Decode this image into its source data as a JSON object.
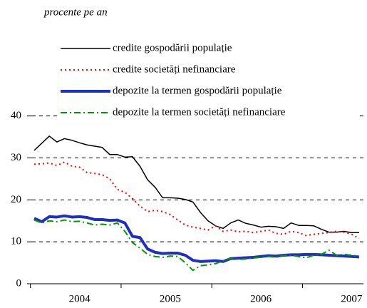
{
  "chart_data": {
    "type": "line",
    "y_label": "procente pe an",
    "categories": [
      null,
      null,
      null,
      null,
      null,
      null,
      "2004",
      null,
      null,
      null,
      null,
      null,
      null,
      null,
      null,
      null,
      null,
      null,
      "2005",
      null,
      null,
      null,
      null,
      null,
      null,
      null,
      null,
      null,
      null,
      null,
      "2006",
      null,
      null,
      null,
      null,
      null,
      null,
      null,
      null,
      null,
      null,
      null,
      "2007",
      null
    ],
    "ylim": [
      0,
      60
    ],
    "yticks": [
      0,
      10,
      20,
      30,
      40
    ],
    "grid": true,
    "series": [
      {
        "name": "credite gospodării populație",
        "color": "#000000",
        "line_style": "solid",
        "line_width": 1.5,
        "values": [
          31.8,
          33.5,
          35.2,
          33.8,
          34.6,
          34.2,
          33.6,
          33.1,
          32.8,
          32.5,
          30.8,
          30.8,
          30.2,
          30.3,
          28.0,
          24.8,
          23.0,
          20.5,
          20.5,
          20.4,
          20.1,
          19.5,
          17.0,
          15.0,
          13.8,
          13.2,
          14.5,
          15.2,
          14.4,
          14.0,
          13.5,
          13.7,
          13.6,
          13.2,
          14.5,
          13.9,
          13.9,
          13.8,
          13.0,
          12.3,
          12.3,
          12.5,
          12.2,
          12.2
        ]
      },
      {
        "name": "credite societăți nefinanciare",
        "color": "#ff0000",
        "line_style": "dotted",
        "line_width": 2,
        "values": [
          28.5,
          28.6,
          28.8,
          28.2,
          29.0,
          28.0,
          27.8,
          26.5,
          26.3,
          26.0,
          25.0,
          22.5,
          21.8,
          20.3,
          18.5,
          17.2,
          17.5,
          17.2,
          16.5,
          15.2,
          14.0,
          13.5,
          13.2,
          12.8,
          13.8,
          12.5,
          12.8,
          12.4,
          12.5,
          12.2,
          12.5,
          12.8,
          12.0,
          11.8,
          12.5,
          12.2,
          11.5,
          11.8,
          12.0,
          12.2,
          12.5,
          12.3,
          11.8,
          10.8
        ]
      },
      {
        "name": "depozite la termen gospodării populație",
        "color": "#1f2fbf",
        "line_style": "solid",
        "line_width": 4,
        "values": [
          15.6,
          14.8,
          16.0,
          15.9,
          16.2,
          15.9,
          16.0,
          15.8,
          15.3,
          15.3,
          15.1,
          15.2,
          14.5,
          11.3,
          11.0,
          8.3,
          7.5,
          7.2,
          7.3,
          7.3,
          6.8,
          5.6,
          5.3,
          5.4,
          5.5,
          5.3,
          6.0,
          6.1,
          6.2,
          6.3,
          6.5,
          6.7,
          6.6,
          6.8,
          6.9,
          6.9,
          7.0,
          7.0,
          6.9,
          6.8,
          6.7,
          6.6,
          6.5,
          6.4
        ]
      },
      {
        "name": "depozite la termen societăți nefinanciare",
        "color": "#009900",
        "line_style": "dashdot",
        "line_width": 2,
        "values": [
          15.2,
          14.5,
          15.0,
          14.8,
          15.2,
          14.8,
          14.9,
          14.5,
          14.0,
          14.2,
          14.0,
          14.5,
          12.5,
          9.8,
          8.5,
          7.0,
          6.5,
          6.3,
          6.6,
          6.5,
          5.0,
          3.2,
          4.3,
          4.5,
          4.8,
          5.5,
          6.0,
          5.8,
          5.9,
          6.2,
          6.3,
          6.5,
          6.3,
          6.8,
          6.8,
          6.5,
          6.2,
          6.8,
          7.0,
          8.0,
          6.8,
          7.0,
          6.8,
          6.5
        ]
      }
    ]
  }
}
